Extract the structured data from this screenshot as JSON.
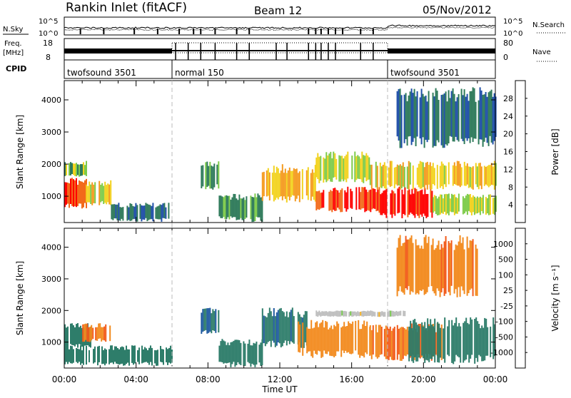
{
  "header": {
    "station": "Rankin Inlet (fitACF)",
    "beam": "Beam 12",
    "date": "05/Nov/2012"
  },
  "noise_panel": {
    "left_label": "N.Sky",
    "right_label": "N.Search",
    "left_ticks": [
      "10^5",
      "10^0"
    ],
    "right_ticks": [
      "10^5",
      "10^0"
    ]
  },
  "freq_panel": {
    "left_label_line1": "Freq.",
    "left_label_line2": "[MHz]",
    "left_ticks": [
      "18",
      "8"
    ],
    "right_label": "Nave",
    "right_ticks": [
      "80",
      "0"
    ]
  },
  "cpid": {
    "label": "CPID",
    "segments": [
      {
        "name": "twofsound 3501",
        "start_hour": 0,
        "end_hour": 6
      },
      {
        "name": "normal 150",
        "start_hour": 6,
        "end_hour": 18
      },
      {
        "name": "twofsound 3501",
        "start_hour": 18,
        "end_hour": 24
      }
    ]
  },
  "x_axis": {
    "label": "Time UT",
    "ticks": [
      "00:00",
      "04:00",
      "08:00",
      "12:00",
      "16:00",
      "20:00",
      "00:00"
    ]
  },
  "colors": {
    "power_scale": [
      "#0000ff",
      "#1f4fa8",
      "#2e7a5a",
      "#7ecb4a",
      "#f2d21e",
      "#f49a1e",
      "#f26a1a",
      "#ff0000"
    ],
    "velocity_scale": [
      "#1e3ca8",
      "#1f5aa0",
      "#2e7d6a",
      "#74c84a",
      "#bdbdbd",
      "#f5b01e",
      "#f28a1e",
      "#f25a1a",
      "#ff0000"
    ]
  },
  "chart_data": [
    {
      "type": "heatmap",
      "title": "",
      "xlabel": "Time UT",
      "ylabel": "Slant Range [km]",
      "xlim": [
        0,
        24
      ],
      "ylim": [
        180,
        4600
      ],
      "y_ticks": [
        1000,
        2000,
        3000,
        4000
      ],
      "colorbar": {
        "label": "Power [dB]",
        "ticks": [
          4,
          8,
          12,
          16,
          20,
          24,
          28
        ],
        "range": [
          0,
          32
        ]
      },
      "regions": [
        {
          "t0": 0.0,
          "t1": 1.2,
          "r0": 600,
          "r1": 1600,
          "value": 28
        },
        {
          "t0": 0.0,
          "t1": 1.2,
          "r0": 1600,
          "r1": 2100,
          "value": 14
        },
        {
          "t0": 1.2,
          "t1": 2.6,
          "r0": 700,
          "r1": 1500,
          "value": 18
        },
        {
          "t0": 2.6,
          "t1": 5.8,
          "r0": 200,
          "r1": 800,
          "value": 8
        },
        {
          "t0": 7.6,
          "t1": 8.6,
          "r0": 1200,
          "r1": 2100,
          "value": 12
        },
        {
          "t0": 8.6,
          "t1": 11.0,
          "r0": 200,
          "r1": 1100,
          "value": 12
        },
        {
          "t0": 11.0,
          "t1": 14.0,
          "r0": 800,
          "r1": 2000,
          "value": 20
        },
        {
          "t0": 14.0,
          "t1": 17.5,
          "r0": 500,
          "r1": 1300,
          "value": 28
        },
        {
          "t0": 14.0,
          "t1": 17.0,
          "r0": 1400,
          "r1": 2400,
          "value": 16
        },
        {
          "t0": 17.5,
          "t1": 20.5,
          "r0": 300,
          "r1": 1300,
          "value": 30
        },
        {
          "t0": 17.0,
          "t1": 24.0,
          "r0": 1200,
          "r1": 2100,
          "value": 18
        },
        {
          "t0": 20.5,
          "t1": 24.0,
          "r0": 400,
          "r1": 1100,
          "value": 16
        },
        {
          "t0": 18.5,
          "t1": 24.0,
          "r0": 2500,
          "r1": 4400,
          "value": 8
        }
      ]
    },
    {
      "type": "heatmap",
      "title": "",
      "xlabel": "Time UT",
      "ylabel": "Slant Range [km]",
      "xlim": [
        0,
        24
      ],
      "ylim": [
        180,
        4600
      ],
      "y_ticks": [
        1000,
        2000,
        3000,
        4000
      ],
      "colorbar": {
        "label": "Velocity [m s⁻¹]",
        "ticks": [
          1000,
          500,
          100,
          25,
          -25,
          -100,
          -500,
          -1000
        ],
        "range": [
          -1000,
          1000
        ]
      },
      "regions": [
        {
          "t0": 0.0,
          "t1": 1.5,
          "r0": 800,
          "r1": 1600,
          "value": 250
        },
        {
          "t0": 1.0,
          "t1": 2.6,
          "r0": 1000,
          "r1": 1600,
          "value": -500
        },
        {
          "t0": 0.0,
          "t1": 6.0,
          "r0": 250,
          "r1": 900,
          "value": 300
        },
        {
          "t0": 7.6,
          "t1": 8.6,
          "r0": 1200,
          "r1": 2100,
          "value": 500
        },
        {
          "t0": 8.6,
          "t1": 11.0,
          "r0": 200,
          "r1": 1100,
          "value": 300
        },
        {
          "t0": 11.0,
          "t1": 13.5,
          "r0": 800,
          "r1": 2100,
          "value": 400
        },
        {
          "t0": 13.0,
          "t1": 17.0,
          "r0": 500,
          "r1": 1700,
          "value": -300
        },
        {
          "t0": 14.0,
          "t1": 19.0,
          "r0": 1800,
          "r1": 2000,
          "value": 0
        },
        {
          "t0": 17.0,
          "t1": 21.0,
          "r0": 400,
          "r1": 1600,
          "value": -500
        },
        {
          "t0": 19.0,
          "t1": 24.0,
          "r0": 300,
          "r1": 1800,
          "value": 200
        },
        {
          "t0": 18.5,
          "t1": 23.0,
          "r0": 2400,
          "r1": 4400,
          "value": -400
        }
      ]
    }
  ]
}
